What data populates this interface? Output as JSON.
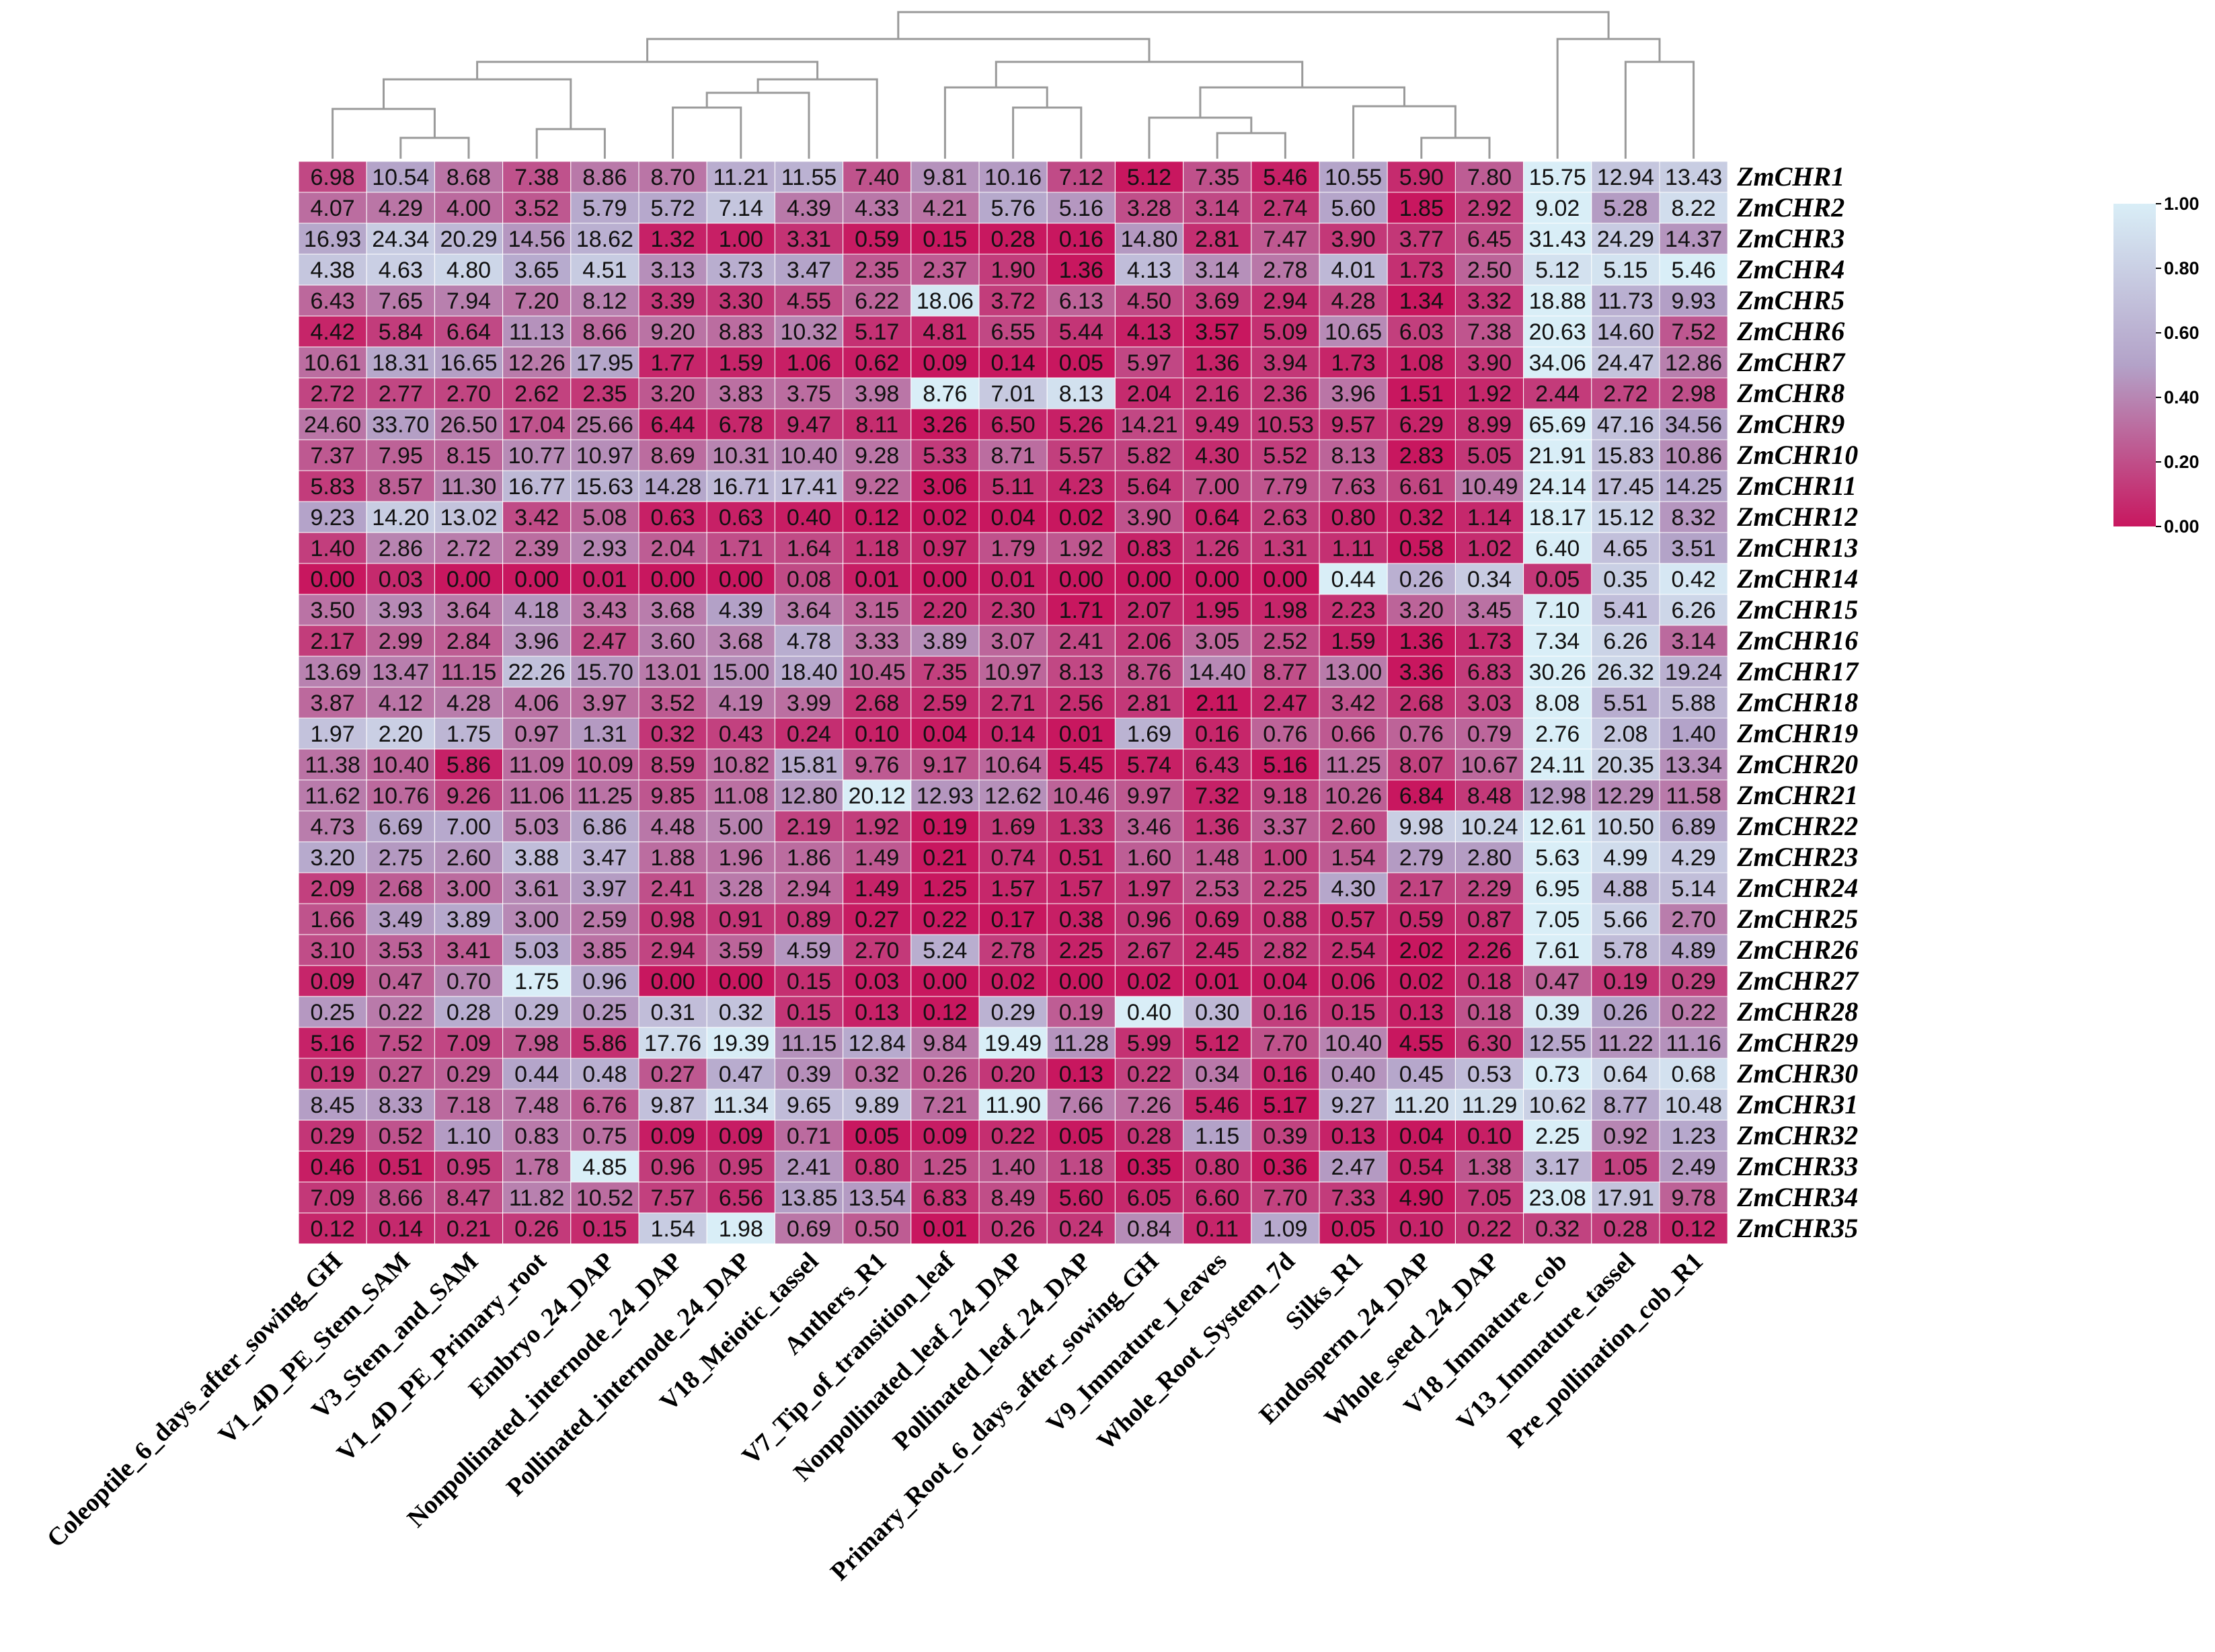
{
  "chart_data": {
    "type": "heatmap",
    "title": "",
    "columns": [
      "Coleoptile_6_days_after_sowing_GH",
      "V1_4D_PE_Stem_SAM",
      "V3_Stem_and_SAM",
      "V1_4D_PE_Primary_root",
      "Embryo_24_DAP",
      "Nonpollinated_internode_24_DAP",
      "Pollinated_internode_24_DAP",
      "V18_Meiotic_tassel",
      "Anthers_R1",
      "V7_Tip_of_transition_leaf",
      "Nonpollinated_leaf_24_DAP",
      "Pollinated_leaf_24_DAP",
      "Primary_Root_6_days_after_sowing_GH",
      "V9_Immature_Leaves",
      "Whole_Root_System_7d",
      "Silks_R1",
      "Endosperm_24_DAP",
      "Whole_seed_24_DAP",
      "V18_Immature_cob",
      "V13_Immature_tassel",
      "Pre_pollination_cob_R1"
    ],
    "rows": [
      "ZmCHR1",
      "ZmCHR2",
      "ZmCHR3",
      "ZmCHR4",
      "ZmCHR5",
      "ZmCHR6",
      "ZmCHR7",
      "ZmCHR8",
      "ZmCHR9",
      "ZmCHR10",
      "ZmCHR11",
      "ZmCHR12",
      "ZmCHR13",
      "ZmCHR14",
      "ZmCHR15",
      "ZmCHR16",
      "ZmCHR17",
      "ZmCHR18",
      "ZmCHR19",
      "ZmCHR20",
      "ZmCHR21",
      "ZmCHR22",
      "ZmCHR23",
      "ZmCHR24",
      "ZmCHR25",
      "ZmCHR26",
      "ZmCHR27",
      "ZmCHR28",
      "ZmCHR29",
      "ZmCHR30",
      "ZmCHR31",
      "ZmCHR32",
      "ZmCHR33",
      "ZmCHR34",
      "ZmCHR35"
    ],
    "values": [
      [
        "6.98",
        "10.54",
        "8.68",
        "7.38",
        "8.86",
        "8.70",
        "11.21",
        "11.55",
        "7.40",
        "9.81",
        "10.16",
        "7.12",
        "5.12",
        "7.35",
        "5.46",
        "10.55",
        "5.90",
        "7.80",
        "15.75",
        "12.94",
        "13.43"
      ],
      [
        "4.07",
        "4.29",
        "4.00",
        "3.52",
        "5.79",
        "5.72",
        "7.14",
        "4.39",
        "4.33",
        "4.21",
        "5.76",
        "5.16",
        "3.28",
        "3.14",
        "2.74",
        "5.60",
        "1.85",
        "2.92",
        "9.02",
        "5.28",
        "8.22"
      ],
      [
        "16.93",
        "24.34",
        "20.29",
        "14.56",
        "18.62",
        "1.32",
        "1.00",
        "3.31",
        "0.59",
        "0.15",
        "0.28",
        "0.16",
        "14.80",
        "2.81",
        "7.47",
        "3.90",
        "3.77",
        "6.45",
        "31.43",
        "24.29",
        "14.37"
      ],
      [
        "4.38",
        "4.63",
        "4.80",
        "3.65",
        "4.51",
        "3.13",
        "3.73",
        "3.47",
        "2.35",
        "2.37",
        "1.90",
        "1.36",
        "4.13",
        "3.14",
        "2.78",
        "4.01",
        "1.73",
        "2.50",
        "5.12",
        "5.15",
        "5.46"
      ],
      [
        "6.43",
        "7.65",
        "7.94",
        "7.20",
        "8.12",
        "3.39",
        "3.30",
        "4.55",
        "6.22",
        "18.06",
        "3.72",
        "6.13",
        "4.50",
        "3.69",
        "2.94",
        "4.28",
        "1.34",
        "3.32",
        "18.88",
        "11.73",
        "9.93"
      ],
      [
        "4.42",
        "5.84",
        "6.64",
        "11.13",
        "8.66",
        "9.20",
        "8.83",
        "10.32",
        "5.17",
        "4.81",
        "6.55",
        "5.44",
        "4.13",
        "3.57",
        "5.09",
        "10.65",
        "6.03",
        "7.38",
        "20.63",
        "14.60",
        "7.52"
      ],
      [
        "10.61",
        "18.31",
        "16.65",
        "12.26",
        "17.95",
        "1.77",
        "1.59",
        "1.06",
        "0.62",
        "0.09",
        "0.14",
        "0.05",
        "5.97",
        "1.36",
        "3.94",
        "1.73",
        "1.08",
        "3.90",
        "34.06",
        "24.47",
        "12.86"
      ],
      [
        "2.72",
        "2.77",
        "2.70",
        "2.62",
        "2.35",
        "3.20",
        "3.83",
        "3.75",
        "3.98",
        "8.76",
        "7.01",
        "8.13",
        "2.04",
        "2.16",
        "2.36",
        "3.96",
        "1.51",
        "1.92",
        "2.44",
        "2.72",
        "2.98"
      ],
      [
        "24.60",
        "33.70",
        "26.50",
        "17.04",
        "25.66",
        "6.44",
        "6.78",
        "9.47",
        "8.11",
        "3.26",
        "6.50",
        "5.26",
        "14.21",
        "9.49",
        "10.53",
        "9.57",
        "6.29",
        "8.99",
        "65.69",
        "47.16",
        "34.56"
      ],
      [
        "7.37",
        "7.95",
        "8.15",
        "10.77",
        "10.97",
        "8.69",
        "10.31",
        "10.40",
        "9.28",
        "5.33",
        "8.71",
        "5.57",
        "5.82",
        "4.30",
        "5.52",
        "8.13",
        "2.83",
        "5.05",
        "21.91",
        "15.83",
        "10.86"
      ],
      [
        "5.83",
        "8.57",
        "11.30",
        "16.77",
        "15.63",
        "14.28",
        "16.71",
        "17.41",
        "9.22",
        "3.06",
        "5.11",
        "4.23",
        "5.64",
        "7.00",
        "7.79",
        "7.63",
        "6.61",
        "10.49",
        "24.14",
        "17.45",
        "14.25"
      ],
      [
        "9.23",
        "14.20",
        "13.02",
        "3.42",
        "5.08",
        "0.63",
        "0.63",
        "0.40",
        "0.12",
        "0.02",
        "0.04",
        "0.02",
        "3.90",
        "0.64",
        "2.63",
        "0.80",
        "0.32",
        "1.14",
        "18.17",
        "15.12",
        "8.32"
      ],
      [
        "1.40",
        "2.86",
        "2.72",
        "2.39",
        "2.93",
        "2.04",
        "1.71",
        "1.64",
        "1.18",
        "0.97",
        "1.79",
        "1.92",
        "0.83",
        "1.26",
        "1.31",
        "1.11",
        "0.58",
        "1.02",
        "6.40",
        "4.65",
        "3.51"
      ],
      [
        "0.00",
        "0.03",
        "0.00",
        "0.00",
        "0.01",
        "0.00",
        "0.00",
        "0.08",
        "0.01",
        "0.00",
        "0.01",
        "0.00",
        "0.00",
        "0.00",
        "0.00",
        "0.44",
        "0.26",
        "0.34",
        "0.05",
        "0.35",
        "0.42"
      ],
      [
        "3.50",
        "3.93",
        "3.64",
        "4.18",
        "3.43",
        "3.68",
        "4.39",
        "3.64",
        "3.15",
        "2.20",
        "2.30",
        "1.71",
        "2.07",
        "1.95",
        "1.98",
        "2.23",
        "3.20",
        "3.45",
        "7.10",
        "5.41",
        "6.26"
      ],
      [
        "2.17",
        "2.99",
        "2.84",
        "3.96",
        "2.47",
        "3.60",
        "3.68",
        "4.78",
        "3.33",
        "3.89",
        "3.07",
        "2.41",
        "2.06",
        "3.05",
        "2.52",
        "1.59",
        "1.36",
        "1.73",
        "7.34",
        "6.26",
        "3.14"
      ],
      [
        "13.69",
        "13.47",
        "11.15",
        "22.26",
        "15.70",
        "13.01",
        "15.00",
        "18.40",
        "10.45",
        "7.35",
        "10.97",
        "8.13",
        "8.76",
        "14.40",
        "8.77",
        "13.00",
        "3.36",
        "6.83",
        "30.26",
        "26.32",
        "19.24"
      ],
      [
        "3.87",
        "4.12",
        "4.28",
        "4.06",
        "3.97",
        "3.52",
        "4.19",
        "3.99",
        "2.68",
        "2.59",
        "2.71",
        "2.56",
        "2.81",
        "2.11",
        "2.47",
        "3.42",
        "2.68",
        "3.03",
        "8.08",
        "5.51",
        "5.88"
      ],
      [
        "1.97",
        "2.20",
        "1.75",
        "0.97",
        "1.31",
        "0.32",
        "0.43",
        "0.24",
        "0.10",
        "0.04",
        "0.14",
        "0.01",
        "1.69",
        "0.16",
        "0.76",
        "0.66",
        "0.76",
        "0.79",
        "2.76",
        "2.08",
        "1.40"
      ],
      [
        "11.38",
        "10.40",
        "5.86",
        "11.09",
        "10.09",
        "8.59",
        "10.82",
        "15.81",
        "9.76",
        "9.17",
        "10.64",
        "5.45",
        "5.74",
        "6.43",
        "5.16",
        "11.25",
        "8.07",
        "10.67",
        "24.11",
        "20.35",
        "13.34"
      ],
      [
        "11.62",
        "10.76",
        "9.26",
        "11.06",
        "11.25",
        "9.85",
        "11.08",
        "12.80",
        "20.12",
        "12.93",
        "12.62",
        "10.46",
        "9.97",
        "7.32",
        "9.18",
        "10.26",
        "6.84",
        "8.48",
        "12.98",
        "12.29",
        "11.58"
      ],
      [
        "4.73",
        "6.69",
        "7.00",
        "5.03",
        "6.86",
        "4.48",
        "5.00",
        "2.19",
        "1.92",
        "0.19",
        "1.69",
        "1.33",
        "3.46",
        "1.36",
        "3.37",
        "2.60",
        "9.98",
        "10.24",
        "12.61",
        "10.50",
        "6.89"
      ],
      [
        "3.20",
        "2.75",
        "2.60",
        "3.88",
        "3.47",
        "1.88",
        "1.96",
        "1.86",
        "1.49",
        "0.21",
        "0.74",
        "0.51",
        "1.60",
        "1.48",
        "1.00",
        "1.54",
        "2.79",
        "2.80",
        "5.63",
        "4.99",
        "4.29"
      ],
      [
        "2.09",
        "2.68",
        "3.00",
        "3.61",
        "3.97",
        "2.41",
        "3.28",
        "2.94",
        "1.49",
        "1.25",
        "1.57",
        "1.57",
        "1.97",
        "2.53",
        "2.25",
        "4.30",
        "2.17",
        "2.29",
        "6.95",
        "4.88",
        "5.14"
      ],
      [
        "1.66",
        "3.49",
        "3.89",
        "3.00",
        "2.59",
        "0.98",
        "0.91",
        "0.89",
        "0.27",
        "0.22",
        "0.17",
        "0.38",
        "0.96",
        "0.69",
        "0.88",
        "0.57",
        "0.59",
        "0.87",
        "7.05",
        "5.66",
        "2.70"
      ],
      [
        "3.10",
        "3.53",
        "3.41",
        "5.03",
        "3.85",
        "2.94",
        "3.59",
        "4.59",
        "2.70",
        "5.24",
        "2.78",
        "2.25",
        "2.67",
        "2.45",
        "2.82",
        "2.54",
        "2.02",
        "2.26",
        "7.61",
        "5.78",
        "4.89"
      ],
      [
        "0.09",
        "0.47",
        "0.70",
        "1.75",
        "0.96",
        "0.00",
        "0.00",
        "0.15",
        "0.03",
        "0.00",
        "0.02",
        "0.00",
        "0.02",
        "0.01",
        "0.04",
        "0.06",
        "0.02",
        "0.18",
        "0.47",
        "0.19",
        "0.29"
      ],
      [
        "0.25",
        "0.22",
        "0.28",
        "0.29",
        "0.25",
        "0.31",
        "0.32",
        "0.15",
        "0.13",
        "0.12",
        "0.29",
        "0.19",
        "0.40",
        "0.30",
        "0.16",
        "0.15",
        "0.13",
        "0.18",
        "0.39",
        "0.26",
        "0.22"
      ],
      [
        "5.16",
        "7.52",
        "7.09",
        "7.98",
        "5.86",
        "17.76",
        "19.39",
        "11.15",
        "12.84",
        "9.84",
        "19.49",
        "11.28",
        "5.99",
        "5.12",
        "7.70",
        "10.40",
        "4.55",
        "6.30",
        "12.55",
        "11.22",
        "11.16"
      ],
      [
        "0.19",
        "0.27",
        "0.29",
        "0.44",
        "0.48",
        "0.27",
        "0.47",
        "0.39",
        "0.32",
        "0.26",
        "0.20",
        "0.13",
        "0.22",
        "0.34",
        "0.16",
        "0.40",
        "0.45",
        "0.53",
        "0.73",
        "0.64",
        "0.68"
      ],
      [
        "8.45",
        "8.33",
        "7.18",
        "7.48",
        "6.76",
        "9.87",
        "11.34",
        "9.65",
        "9.89",
        "7.21",
        "11.90",
        "7.66",
        "7.26",
        "5.46",
        "5.17",
        "9.27",
        "11.20",
        "11.29",
        "10.62",
        "8.77",
        "10.48"
      ],
      [
        "0.29",
        "0.52",
        "1.10",
        "0.83",
        "0.75",
        "0.09",
        "0.09",
        "0.71",
        "0.05",
        "0.09",
        "0.22",
        "0.05",
        "0.28",
        "1.15",
        "0.39",
        "0.13",
        "0.04",
        "0.10",
        "2.25",
        "0.92",
        "1.23"
      ],
      [
        "0.46",
        "0.51",
        "0.95",
        "1.78",
        "4.85",
        "0.96",
        "0.95",
        "2.41",
        "0.80",
        "1.25",
        "1.40",
        "1.18",
        "0.35",
        "0.80",
        "0.36",
        "2.47",
        "0.54",
        "1.38",
        "3.17",
        "1.05",
        "2.49"
      ],
      [
        "7.09",
        "8.66",
        "8.47",
        "11.82",
        "10.52",
        "7.57",
        "6.56",
        "13.85",
        "13.54",
        "6.83",
        "8.49",
        "5.60",
        "6.05",
        "6.60",
        "7.70",
        "7.33",
        "4.90",
        "7.05",
        "23.08",
        "17.91",
        "9.78"
      ],
      [
        "0.12",
        "0.14",
        "0.21",
        "0.26",
        "0.15",
        "1.54",
        "1.98",
        "0.69",
        "0.50",
        "0.01",
        "0.26",
        "0.24",
        "0.84",
        "0.11",
        "1.09",
        "0.05",
        "0.10",
        "0.22",
        "0.32",
        "0.28",
        "0.12"
      ]
    ],
    "color_scale": {
      "normalization": "row-wise min-max",
      "low_color": "#c8175f",
      "mid_color": "#b3a2c8",
      "high_color": "#d9eef7",
      "min": 0.0,
      "max": 1.0,
      "ticks": [
        "0.00",
        "0.20",
        "0.40",
        "0.60",
        "0.80",
        "1.00"
      ]
    },
    "legend_position": "right",
    "column_dendrogram": true,
    "row_dendrogram": false
  }
}
